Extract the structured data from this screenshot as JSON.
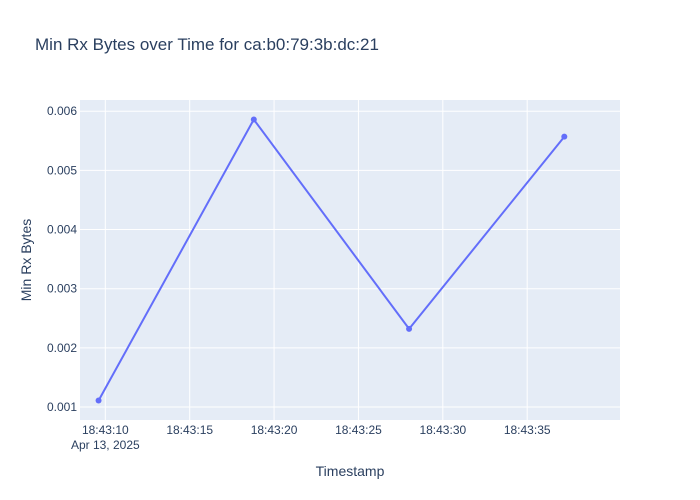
{
  "chart_data": {
    "type": "line",
    "title": "Min Rx Bytes over Time for ca:b0:79:3b:dc:21",
    "xlabel": "Timestamp",
    "ylabel": "Min Rx Bytes",
    "x_date_label": "Apr 13, 2025",
    "x": [
      "18:43:09.6",
      "18:43:18.8",
      "18:43:28.0",
      "18:43:37.2"
    ],
    "series": [
      {
        "values": [
          0.00111,
          0.00586,
          0.00232,
          0.00557
        ],
        "color": "#636efa"
      }
    ],
    "xlim": [
      "18:43:08.5",
      "18:43:40.5"
    ],
    "ylim": [
      0.00078,
      0.00619
    ],
    "x_ticks": [
      "18:43:10",
      "18:43:15",
      "18:43:20",
      "18:43:25",
      "18:43:30",
      "18:43:35"
    ],
    "y_ticks": [
      0.001,
      0.002,
      0.003,
      0.004,
      0.005,
      0.006
    ],
    "y_tick_labels": [
      "0.001",
      "0.002",
      "0.003",
      "0.004",
      "0.005",
      "0.006"
    ],
    "grid": true,
    "legend": "none",
    "colors": {
      "plot_background": "#e5ecf6",
      "grid": "#ffffff",
      "text": "#2a3f5f"
    }
  }
}
